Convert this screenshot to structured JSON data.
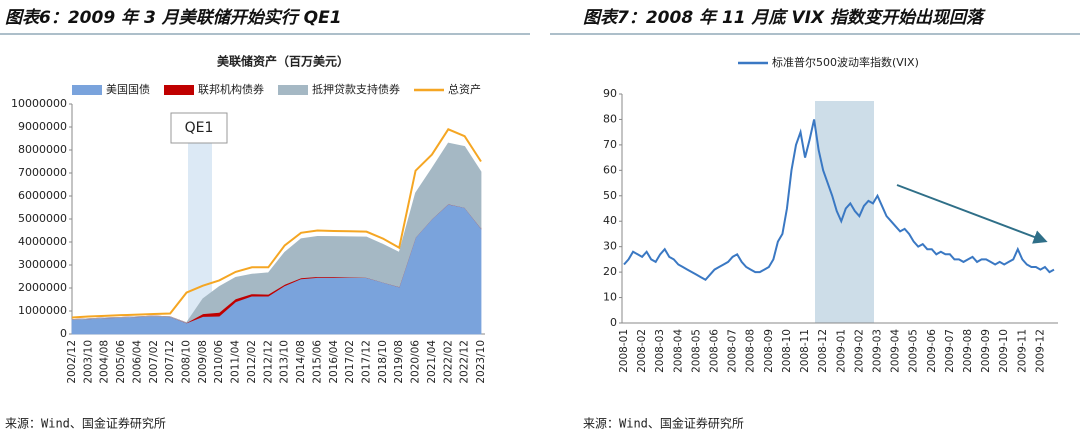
{
  "chart_data": [
    {
      "type": "area",
      "heading": "图表6：2009 年 3 月美联储开始实行 QE1",
      "title": "美联储资产（百万美元）",
      "source": "来源：Wind、国金证券研究所",
      "legend": "top",
      "annotations": [
        {
          "text": "QE1"
        }
      ],
      "categories": [
        "2002/12",
        "2003/10",
        "2004/08",
        "2005/06",
        "2006/04",
        "2007/02",
        "2007/12",
        "2008/10",
        "2009/08",
        "2010/06",
        "2011/04",
        "2012/02",
        "2012/12",
        "2013/10",
        "2014/08",
        "2015/06",
        "2016/04",
        "2017/02",
        "2017/12",
        "2018/10",
        "2019/08",
        "2020/06",
        "2021/04",
        "2022/02",
        "2022/12",
        "2023/10"
      ],
      "ylim": [
        0,
        10000000
      ],
      "yticks": [
        0,
        1000000,
        2000000,
        3000000,
        4000000,
        5000000,
        6000000,
        7000000,
        8000000,
        9000000,
        10000000
      ],
      "series": [
        {
          "name": "美国国债",
          "type": "area",
          "color": "#7aa3dc",
          "values": [
            630000,
            660000,
            700000,
            720000,
            750000,
            780000,
            750000,
            480000,
            760000,
            780000,
            1400000,
            1650000,
            1650000,
            2100000,
            2400000,
            2460000,
            2460000,
            2460000,
            2450000,
            2250000,
            2050000,
            4200000,
            5000000,
            5650000,
            5500000,
            4600000
          ]
        },
        {
          "name": "联邦机构债券",
          "type": "area",
          "color": "#c00000",
          "values": [
            0,
            0,
            0,
            0,
            0,
            0,
            0,
            10000,
            120000,
            160000,
            130000,
            100000,
            80000,
            55000,
            40000,
            35000,
            30000,
            15000,
            5000,
            2000,
            2000,
            2000,
            2000,
            2000,
            2000,
            2000
          ]
        },
        {
          "name": "抵押贷款支持债券",
          "type": "area",
          "color": "#a5b8c4",
          "values": [
            0,
            0,
            0,
            0,
            0,
            0,
            0,
            0,
            650000,
            1120000,
            930000,
            850000,
            930000,
            1400000,
            1700000,
            1750000,
            1750000,
            1750000,
            1760000,
            1650000,
            1500000,
            1930000,
            2200000,
            2650000,
            2650000,
            2450000
          ]
        },
        {
          "name": "总资产",
          "type": "line",
          "color": "#f5a623",
          "values": [
            720000,
            760000,
            790000,
            820000,
            840000,
            870000,
            890000,
            1800000,
            2100000,
            2330000,
            2700000,
            2900000,
            2900000,
            3850000,
            4400000,
            4500000,
            4480000,
            4470000,
            4450000,
            4150000,
            3750000,
            7100000,
            7800000,
            8900000,
            8600000,
            7500000
          ]
        }
      ]
    },
    {
      "type": "line",
      "heading": "图表7：2008 年 11 月底 VIX 指数变开始出现回落",
      "source": "来源：Wind、国金证券研究所",
      "legend": "top",
      "categories": [
        "2008-01",
        null,
        null,
        null,
        "2008-02",
        null,
        null,
        null,
        "2008-03",
        null,
        null,
        null,
        "2008-04",
        null,
        null,
        null,
        "2008-05",
        null,
        null,
        null,
        "2008-06",
        null,
        null,
        null,
        "2008-07",
        null,
        null,
        null,
        "2008-08",
        null,
        null,
        null,
        "2008-09",
        null,
        null,
        null,
        "2008-10",
        null,
        null,
        null,
        "2008-11",
        null,
        null,
        null,
        "2008-12",
        null,
        null,
        null,
        "2009-01",
        null,
        null,
        null,
        "2009-02",
        null,
        null,
        null,
        "2009-03",
        null,
        null,
        null,
        "2009-04",
        null,
        null,
        null,
        "2009-05",
        null,
        null,
        null,
        "2009-06",
        null,
        null,
        null,
        "2009-07",
        null,
        null,
        null,
        "2009-08",
        null,
        null,
        null,
        "2009-09",
        null,
        null,
        null,
        "2009-10",
        null,
        null,
        null,
        "2009-11",
        null,
        null,
        null,
        "2009-12",
        null,
        null,
        null
      ],
      "ylim": [
        0,
        90
      ],
      "yticks": [
        0,
        10,
        20,
        30,
        40,
        50,
        60,
        70,
        80,
        90
      ],
      "series": [
        {
          "name": "标准普尔500波动率指数(VIX)",
          "type": "line",
          "color": "#3a78c3",
          "values": [
            23,
            25,
            28,
            27,
            26,
            28,
            25,
            24,
            27,
            29,
            26,
            25,
            23,
            22,
            21,
            20,
            19,
            18,
            17,
            19,
            21,
            22,
            23,
            24,
            26,
            27,
            24,
            22,
            21,
            20,
            20,
            21,
            22,
            25,
            32,
            35,
            45,
            60,
            70,
            75,
            65,
            72,
            80,
            68,
            60,
            55,
            50,
            44,
            40,
            45,
            47,
            44,
            42,
            46,
            48,
            47,
            50,
            46,
            42,
            40,
            38,
            36,
            37,
            35,
            32,
            30,
            31,
            29,
            29,
            27,
            28,
            27,
            27,
            25,
            25,
            24,
            25,
            26,
            24,
            25,
            25,
            24,
            23,
            24,
            23,
            24,
            25,
            29,
            25,
            23,
            22,
            22,
            21,
            22,
            20,
            21
          ]
        }
      ]
    }
  ]
}
